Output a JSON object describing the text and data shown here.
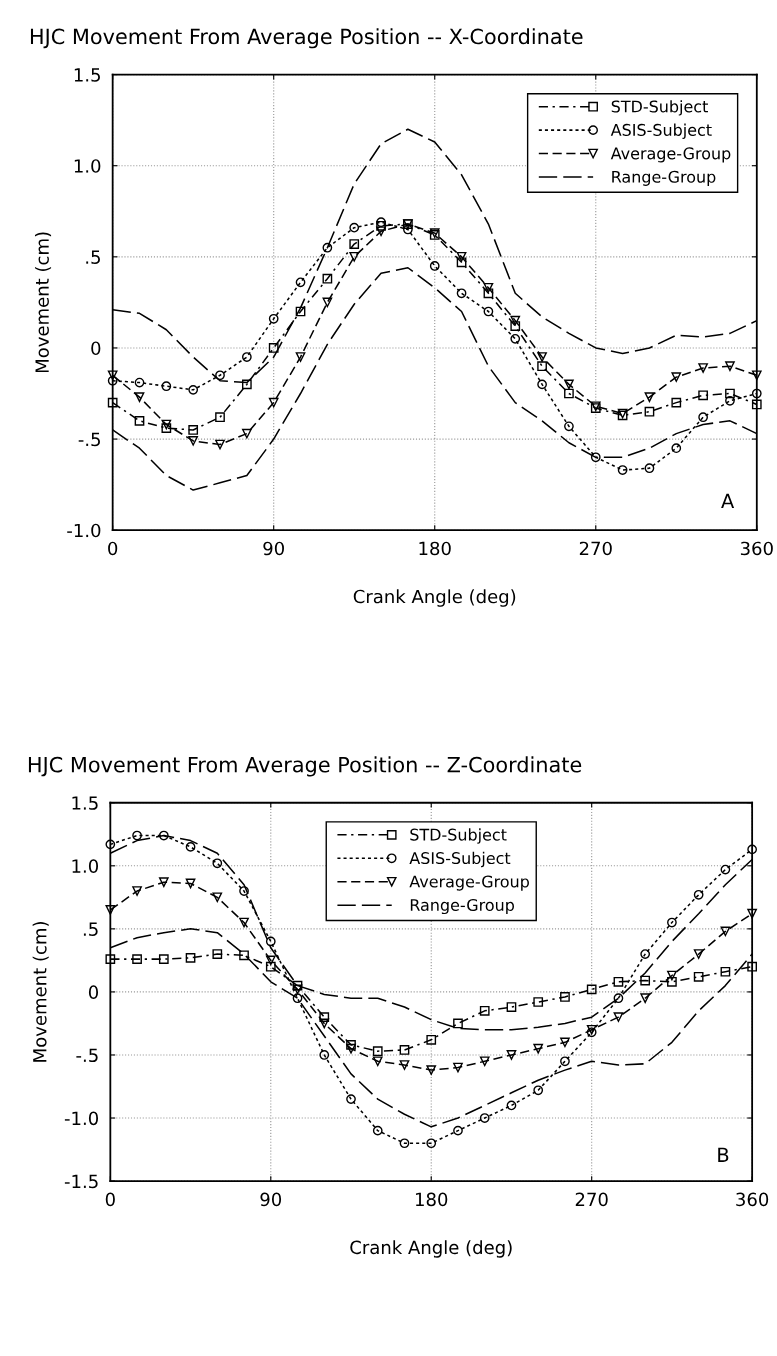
{
  "chart_data": [
    {
      "type": "line",
      "title": "HJC Movement From Average Position -- X-Coordinate",
      "xlabel": "Crank Angle (deg)",
      "ylabel": "Movement (cm)",
      "x": [
        0,
        15,
        30,
        45,
        60,
        75,
        90,
        105,
        120,
        135,
        150,
        165,
        180,
        195,
        210,
        225,
        240,
        255,
        270,
        285,
        300,
        315,
        330,
        345,
        360
      ],
      "series": [
        {
          "name": "STD-Subject",
          "color": "#000000",
          "marker": "square",
          "line_style": "dashdot",
          "values": [
            -0.3,
            -0.4,
            -0.44,
            -0.45,
            -0.38,
            -0.2,
            0.0,
            0.2,
            0.38,
            0.57,
            0.67,
            0.68,
            0.62,
            0.47,
            0.3,
            0.12,
            -0.1,
            -0.25,
            -0.33,
            -0.37,
            -0.35,
            -0.3,
            -0.26,
            -0.25,
            -0.31
          ]
        },
        {
          "name": "ASIS-Subject",
          "color": "#000000",
          "marker": "circle",
          "line_style": "dotted",
          "values": [
            -0.18,
            -0.19,
            -0.21,
            -0.23,
            -0.15,
            -0.05,
            0.16,
            0.36,
            0.55,
            0.66,
            0.69,
            0.65,
            0.45,
            0.3,
            0.2,
            0.05,
            -0.2,
            -0.43,
            -0.6,
            -0.67,
            -0.66,
            -0.55,
            -0.38,
            -0.29,
            -0.25
          ]
        },
        {
          "name": "Average-Group",
          "color": "#000000",
          "marker": "triangle",
          "line_style": "dashed",
          "values": [
            -0.15,
            -0.27,
            -0.42,
            -0.51,
            -0.53,
            -0.47,
            -0.3,
            -0.05,
            0.25,
            0.5,
            0.64,
            0.68,
            0.63,
            0.5,
            0.33,
            0.15,
            -0.05,
            -0.2,
            -0.32,
            -0.36,
            -0.27,
            -0.16,
            -0.11,
            -0.1,
            -0.15
          ]
        },
        {
          "name": "Range-Group",
          "color": "#000000",
          "marker": "none",
          "line_style": "longdash",
          "values": [
            0.21,
            0.19,
            0.1,
            -0.05,
            -0.18,
            -0.19,
            -0.05,
            0.22,
            0.55,
            0.9,
            1.12,
            1.2,
            1.13,
            0.95,
            0.68,
            0.3,
            0.17,
            0.08,
            0.0,
            -0.03,
            0.0,
            0.07,
            0.06,
            0.08,
            0.15
          ]
        },
        {
          "color": "#000000",
          "marker": "none",
          "line_style": "longdash",
          "values": [
            -0.45,
            -0.55,
            -0.7,
            -0.78,
            -0.74,
            -0.7,
            -0.5,
            -0.25,
            0.02,
            0.24,
            0.41,
            0.44,
            0.33,
            0.2,
            -0.1,
            -0.3,
            -0.4,
            -0.52,
            -0.6,
            -0.6,
            -0.55,
            -0.47,
            -0.42,
            -0.4,
            -0.47
          ]
        }
      ],
      "xlim": [
        0,
        360
      ],
      "xticks": [
        0,
        90,
        180,
        270,
        360
      ],
      "ylim": [
        -1.0,
        1.5
      ],
      "yticks": [
        {
          "value": -1.0,
          "label": "-1.0"
        },
        {
          "value": -0.5,
          "label": "-.5"
        },
        0,
        {
          "value": 0.5,
          "label": ".5"
        },
        {
          "value": 1.0,
          "label": "1.0"
        },
        {
          "value": 1.5,
          "label": "1.5"
        }
      ],
      "grid": true,
      "legend": "top right",
      "annotations": [
        "A"
      ]
    },
    {
      "type": "line",
      "title": "HJC Movement From Average Position -- Z-Coordinate",
      "xlabel": "Crank Angle (deg)",
      "ylabel": "Movement (cm)",
      "x": [
        0,
        15,
        30,
        45,
        60,
        75,
        90,
        105,
        120,
        135,
        150,
        165,
        180,
        195,
        210,
        225,
        240,
        255,
        270,
        285,
        300,
        315,
        330,
        345,
        360
      ],
      "series": [
        {
          "name": "STD-Subject",
          "color": "#000000",
          "marker": "square",
          "line_style": "dashdot",
          "values": [
            0.26,
            0.26,
            0.26,
            0.27,
            0.3,
            0.29,
            0.2,
            0.05,
            -0.2,
            -0.42,
            -0.47,
            -0.46,
            -0.38,
            -0.25,
            -0.15,
            -0.12,
            -0.08,
            -0.04,
            0.02,
            0.08,
            0.09,
            0.08,
            0.12,
            0.16,
            0.2
          ]
        },
        {
          "name": "ASIS-Subject",
          "color": "#000000",
          "marker": "circle",
          "line_style": "dotted",
          "values": [
            1.17,
            1.24,
            1.24,
            1.15,
            1.02,
            0.8,
            0.4,
            -0.05,
            -0.5,
            -0.85,
            -1.1,
            -1.2,
            -1.2,
            -1.1,
            -1.0,
            -0.9,
            -0.78,
            -0.55,
            -0.32,
            -0.05,
            0.3,
            0.55,
            0.77,
            0.97,
            1.13
          ]
        },
        {
          "name": "Average-Group",
          "color": "#000000",
          "marker": "triangle",
          "line_style": "dashed",
          "values": [
            0.65,
            0.8,
            0.87,
            0.86,
            0.75,
            0.55,
            0.25,
            0.02,
            -0.25,
            -0.45,
            -0.55,
            -0.58,
            -0.62,
            -0.6,
            -0.55,
            -0.5,
            -0.45,
            -0.4,
            -0.3,
            -0.2,
            -0.05,
            0.13,
            0.3,
            0.48,
            0.62
          ]
        },
        {
          "name": "Range-Group",
          "color": "#000000",
          "marker": "none",
          "line_style": "longdash",
          "values": [
            1.1,
            1.2,
            1.24,
            1.2,
            1.1,
            0.85,
            0.35,
            0.05,
            -0.02,
            -0.05,
            -0.05,
            -0.12,
            -0.22,
            -0.29,
            -0.3,
            -0.3,
            -0.28,
            -0.25,
            -0.2,
            -0.05,
            0.15,
            0.4,
            0.62,
            0.85,
            1.05
          ]
        },
        {
          "color": "#000000",
          "marker": "none",
          "line_style": "longdash",
          "values": [
            0.35,
            0.43,
            0.47,
            0.5,
            0.47,
            0.3,
            0.08,
            -0.05,
            -0.35,
            -0.65,
            -0.85,
            -0.97,
            -1.07,
            -1.0,
            -0.9,
            -0.8,
            -0.7,
            -0.62,
            -0.55,
            -0.58,
            -0.57,
            -0.4,
            -0.15,
            0.05,
            0.3
          ]
        }
      ],
      "xlim": [
        0,
        360
      ],
      "xticks": [
        0,
        90,
        180,
        270,
        360
      ],
      "ylim": [
        -1.5,
        1.5
      ],
      "yticks": [
        {
          "value": -1.5,
          "label": "-1.5"
        },
        {
          "value": -1.0,
          "label": "-1.0"
        },
        {
          "value": -0.5,
          "label": "-.5"
        },
        0,
        {
          "value": 0.5,
          "label": ".5"
        },
        {
          "value": 1.0,
          "label": "1.0"
        },
        {
          "value": 1.5,
          "label": "1.5"
        }
      ],
      "grid": true,
      "legend": "top center",
      "annotations": [
        "B"
      ]
    }
  ]
}
